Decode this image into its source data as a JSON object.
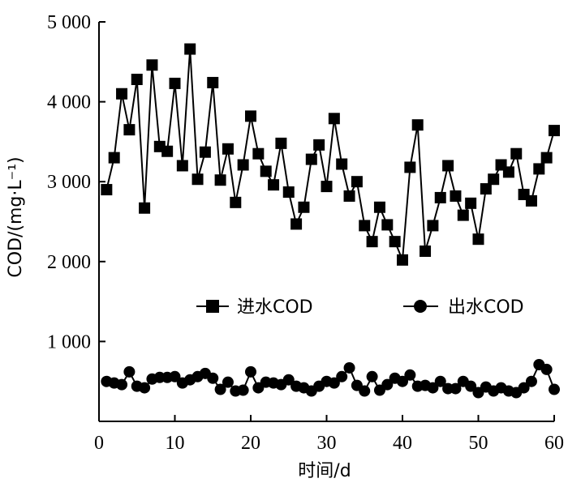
{
  "chart_data": {
    "type": "line",
    "xlabel": "时间/d",
    "ylabel": "COD/(mg·L⁻¹)",
    "xlim": [
      0,
      60
    ],
    "ylim": [
      0,
      5000
    ],
    "x_ticks": [
      0,
      10,
      20,
      30,
      40,
      50,
      60
    ],
    "x_tick_labels": [
      "0",
      "10",
      "20",
      "30",
      "40",
      "50",
      "60"
    ],
    "y_ticks": [
      1000,
      2000,
      3000,
      4000,
      5000
    ],
    "y_tick_labels": [
      "1 000",
      "2 000",
      "3 000",
      "4 000",
      "5 000"
    ],
    "grid": false,
    "legend_position": "middle",
    "x": [
      1,
      2,
      3,
      4,
      5,
      6,
      7,
      8,
      9,
      10,
      11,
      12,
      13,
      14,
      15,
      16,
      17,
      18,
      19,
      20,
      21,
      22,
      23,
      24,
      25,
      26,
      27,
      28,
      29,
      30,
      31,
      32,
      33,
      34,
      35,
      36,
      37,
      38,
      39,
      40,
      41,
      42,
      43,
      44,
      45,
      46,
      47,
      48,
      49,
      50,
      51,
      52,
      53,
      54,
      55,
      56,
      57,
      58,
      59,
      60
    ],
    "series": [
      {
        "name": "进水COD",
        "marker": "square",
        "values": [
          2900,
          3300,
          4100,
          3650,
          4280,
          2670,
          4460,
          3440,
          3380,
          4230,
          3200,
          4660,
          3030,
          3370,
          4240,
          3020,
          3410,
          2740,
          3210,
          3820,
          3350,
          3130,
          2960,
          3480,
          2870,
          2470,
          2680,
          3280,
          3460,
          2940,
          3790,
          3220,
          2820,
          3000,
          2450,
          2250,
          2680,
          2460,
          2250,
          2020,
          3180,
          3710,
          2130,
          2450,
          2800,
          3200,
          2820,
          2580,
          2730,
          2280,
          2910,
          3030,
          3210,
          3120,
          3350,
          2840,
          2760,
          3160,
          3300,
          3640
        ]
      },
      {
        "name": "出水COD",
        "marker": "circle",
        "values": [
          500,
          480,
          460,
          620,
          440,
          420,
          530,
          550,
          550,
          560,
          480,
          520,
          560,
          600,
          540,
          400,
          490,
          380,
          390,
          620,
          420,
          490,
          480,
          460,
          520,
          440,
          420,
          380,
          440,
          500,
          480,
          560,
          670,
          450,
          380,
          560,
          390,
          460,
          540,
          500,
          580,
          440,
          450,
          420,
          500,
          410,
          410,
          500,
          440,
          360,
          430,
          380,
          420,
          380,
          360,
          420,
          500,
          710,
          650,
          400
        ]
      }
    ]
  }
}
